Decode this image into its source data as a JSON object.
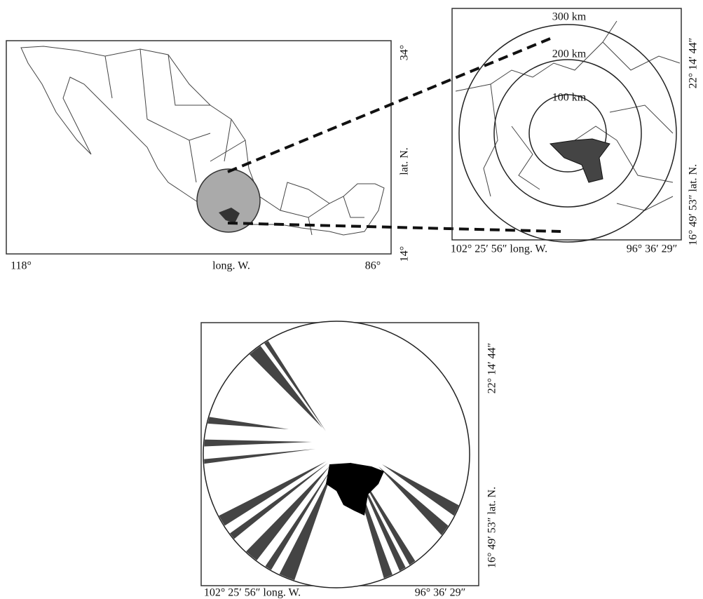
{
  "map_panel": {
    "x_labels": [
      "118°",
      "long. W.",
      "86°"
    ],
    "y_labels": [
      "14°",
      "lat. N.",
      "34°"
    ]
  },
  "zoom_panel": {
    "ring_labels": [
      "300 km",
      "200 km",
      "100 km"
    ],
    "x_labels": [
      "102° 25′ 56″ long. W.",
      "96° 36′ 29″"
    ],
    "y_labels": [
      "16° 49′ 53″ lat. N.",
      "22° 14′ 44″"
    ]
  },
  "viewshed_panel": {
    "x_labels": [
      "102° 25′ 56″ long. W.",
      "96° 36′ 29″"
    ],
    "y_labels": [
      "16° 49′ 53″ lat. N.",
      "22° 14′ 44″"
    ]
  }
}
